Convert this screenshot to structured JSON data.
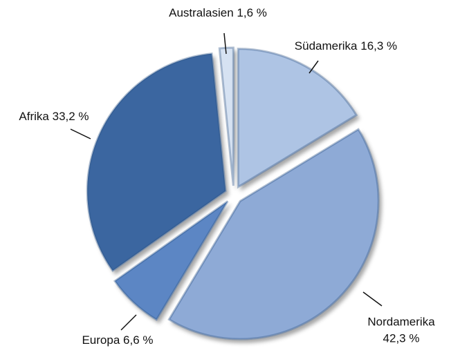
{
  "chart_data": {
    "type": "pie",
    "categories": [
      "Südamerika",
      "Nordamerika",
      "Europa",
      "Afrika",
      "Australasien"
    ],
    "values": [
      16.3,
      42.3,
      6.6,
      33.2,
      1.6
    ],
    "value_labels": [
      "16,3 %",
      "42,3 %",
      "6,6 %",
      "33,2 %",
      "1,6 %"
    ],
    "colors": [
      "#aec4e4",
      "#8eaad6",
      "#5b86c4",
      "#3a66a0",
      "#d6e2f2"
    ]
  }
}
